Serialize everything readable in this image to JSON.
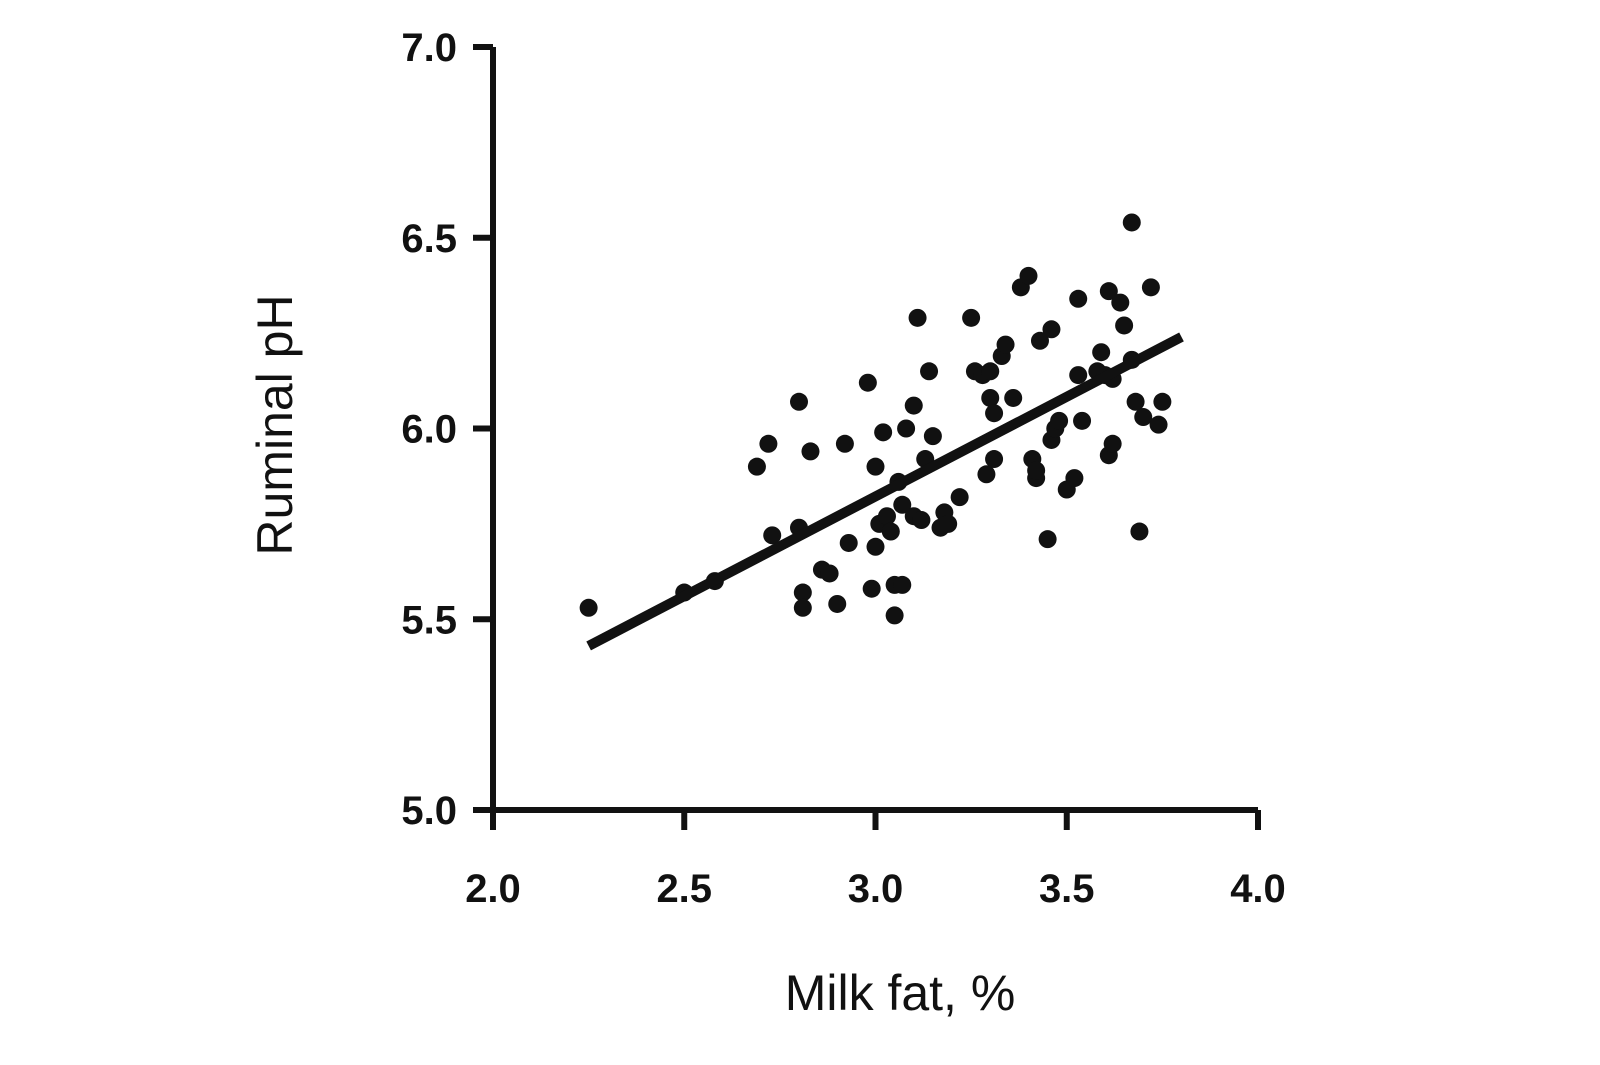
{
  "chart_data": {
    "type": "scatter",
    "title": "",
    "xlabel": "Milk fat, %",
    "ylabel": "Ruminal pH",
    "xlim": [
      2.0,
      4.0
    ],
    "ylim": [
      5.0,
      7.0
    ],
    "xticks": [
      "2.0",
      "2.5",
      "3.0",
      "3.5",
      "4.0"
    ],
    "yticks": [
      "5.0",
      "5.5",
      "6.0",
      "6.5",
      "7.0"
    ],
    "grid": false,
    "legend": "none",
    "colors": {
      "points": "#111111",
      "axis": "#111111",
      "background": "#ffffff"
    },
    "series": [
      {
        "points": [
          [
            2.25,
            5.53
          ],
          [
            2.5,
            5.57
          ],
          [
            2.58,
            5.6
          ],
          [
            2.69,
            5.9
          ],
          [
            2.72,
            5.96
          ],
          [
            2.73,
            5.72
          ],
          [
            2.8,
            5.74
          ],
          [
            2.8,
            6.07
          ],
          [
            2.81,
            5.57
          ],
          [
            2.81,
            5.53
          ],
          [
            2.83,
            5.94
          ],
          [
            2.86,
            5.63
          ],
          [
            2.88,
            5.62
          ],
          [
            2.9,
            5.54
          ],
          [
            2.92,
            5.96
          ],
          [
            2.93,
            5.7
          ],
          [
            2.98,
            6.12
          ],
          [
            2.99,
            5.58
          ],
          [
            3.0,
            5.69
          ],
          [
            3.0,
            5.9
          ],
          [
            3.01,
            5.75
          ],
          [
            3.02,
            5.99
          ],
          [
            3.03,
            5.77
          ],
          [
            3.04,
            5.73
          ],
          [
            3.05,
            5.51
          ],
          [
            3.05,
            5.59
          ],
          [
            3.06,
            5.86
          ],
          [
            3.07,
            5.59
          ],
          [
            3.07,
            5.8
          ],
          [
            3.08,
            6.0
          ],
          [
            3.1,
            6.06
          ],
          [
            3.1,
            5.77
          ],
          [
            3.11,
            6.29
          ],
          [
            3.12,
            5.76
          ],
          [
            3.13,
            5.92
          ],
          [
            3.14,
            6.15
          ],
          [
            3.15,
            5.98
          ],
          [
            3.17,
            5.74
          ],
          [
            3.18,
            5.78
          ],
          [
            3.19,
            5.75
          ],
          [
            3.22,
            5.82
          ],
          [
            3.25,
            6.29
          ],
          [
            3.26,
            6.15
          ],
          [
            3.28,
            6.14
          ],
          [
            3.29,
            5.88
          ],
          [
            3.3,
            6.15
          ],
          [
            3.3,
            6.08
          ],
          [
            3.31,
            6.04
          ],
          [
            3.31,
            5.92
          ],
          [
            3.33,
            6.19
          ],
          [
            3.34,
            6.22
          ],
          [
            3.36,
            6.08
          ],
          [
            3.38,
            6.37
          ],
          [
            3.4,
            6.4
          ],
          [
            3.41,
            5.92
          ],
          [
            3.42,
            5.87
          ],
          [
            3.42,
            5.89
          ],
          [
            3.43,
            6.23
          ],
          [
            3.45,
            5.71
          ],
          [
            3.46,
            6.26
          ],
          [
            3.46,
            5.97
          ],
          [
            3.47,
            6.0
          ],
          [
            3.48,
            6.02
          ],
          [
            3.5,
            5.84
          ],
          [
            3.52,
            5.87
          ],
          [
            3.53,
            6.14
          ],
          [
            3.53,
            6.34
          ],
          [
            3.54,
            6.02
          ],
          [
            3.58,
            6.15
          ],
          [
            3.59,
            6.2
          ],
          [
            3.6,
            6.14
          ],
          [
            3.61,
            6.36
          ],
          [
            3.61,
            5.93
          ],
          [
            3.62,
            5.96
          ],
          [
            3.62,
            6.13
          ],
          [
            3.64,
            6.33
          ],
          [
            3.65,
            6.27
          ],
          [
            3.67,
            6.54
          ],
          [
            3.67,
            6.18
          ],
          [
            3.68,
            6.07
          ],
          [
            3.69,
            5.73
          ],
          [
            3.7,
            6.03
          ],
          [
            3.72,
            6.37
          ],
          [
            3.74,
            6.01
          ],
          [
            3.75,
            6.07
          ]
        ]
      }
    ],
    "regression_line": {
      "x": [
        2.25,
        3.8
      ],
      "y": [
        5.43,
        6.24
      ]
    }
  }
}
